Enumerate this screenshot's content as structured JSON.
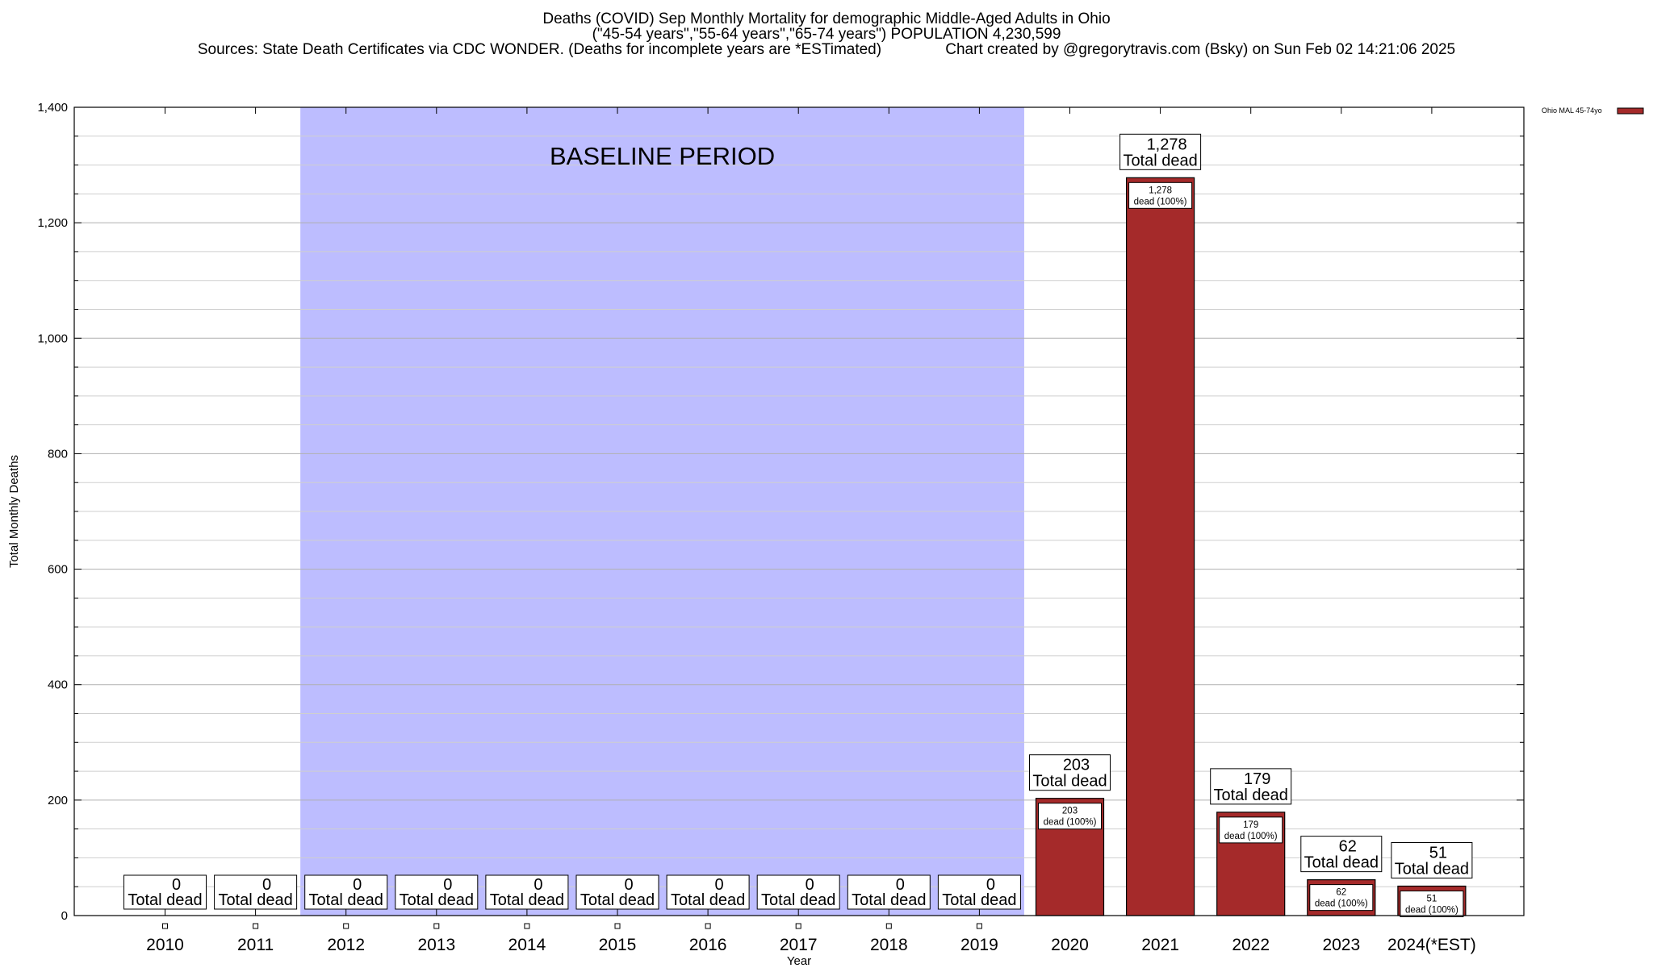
{
  "chart_data": {
    "type": "bar",
    "title": "Deaths (COVID) Sep Monthly Mortality for demographic Middle-Aged Adults in Ohio",
    "subtitle": "(\"45-54 years\",\"55-64 years\",\"65-74 years\") POPULATION 4,230,599",
    "sources": "Sources: State Death Certificates via CDC WONDER. (Deaths for incomplete years are *ESTimated)",
    "credit": "Chart created by @gregorytravis.com (Bsky) on Sun Feb 02 14:21:06 2025",
    "xlabel": "Year",
    "ylabel": "Total Monthly Deaths",
    "ylim": [
      0,
      1400
    ],
    "y_ticks": [
      "0",
      "200",
      "400",
      "600",
      "800",
      "1,000",
      "1,200",
      "1,400"
    ],
    "categories": [
      "2010",
      "2011",
      "2012",
      "2013",
      "2014",
      "2015",
      "2016",
      "2017",
      "2018",
      "2019",
      "2020",
      "2021",
      "2022",
      "2023",
      "2024(*EST)"
    ],
    "series": [
      {
        "name": "Ohio MAL 45-74yo",
        "color": "#a52a2a",
        "values": [
          0,
          0,
          0,
          0,
          0,
          0,
          0,
          0,
          0,
          0,
          203,
          1278,
          179,
          62,
          51
        ]
      }
    ],
    "total_labels": [
      "0",
      "0",
      "0",
      "0",
      "0",
      "0",
      "0",
      "0",
      "0",
      "0",
      "203",
      "1,278",
      "179",
      "62",
      "51"
    ],
    "total_suffix": "Total dead",
    "inner_suffix": "dead (100%)",
    "baseline": {
      "label": "BASELINE PERIOD",
      "from": "2012",
      "to": "2019",
      "color": "#bdbdff"
    },
    "grid": true,
    "legend_position": "top-right"
  }
}
